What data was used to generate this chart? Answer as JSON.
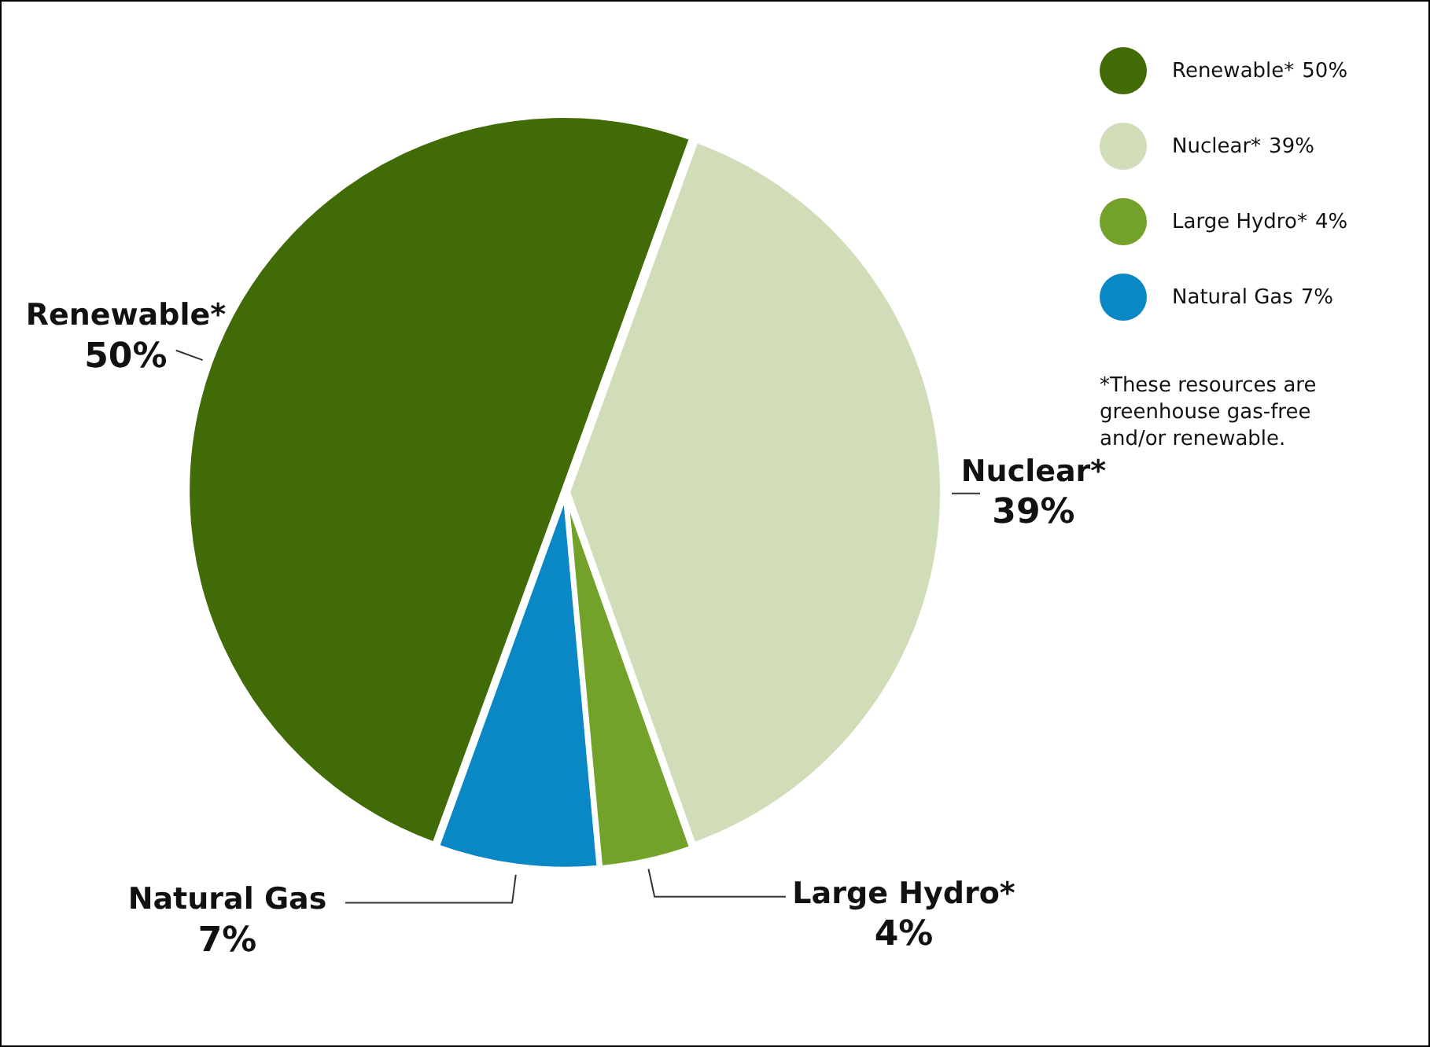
{
  "chart_data": {
    "type": "pie",
    "categories": [
      "Renewable*",
      "Nuclear*",
      "Large Hydro*",
      "Natural Gas"
    ],
    "values": [
      50,
      39,
      4,
      7
    ],
    "value_labels": [
      "50%",
      "39%",
      "4%",
      "7%"
    ],
    "colors": [
      "#416b06",
      "#d0ddb8",
      "#73a22b",
      "#0a88c6"
    ],
    "legend": "top right",
    "annotations": [
      "*These resources are greenhouse gas-free and/or renewable."
    ]
  }
}
